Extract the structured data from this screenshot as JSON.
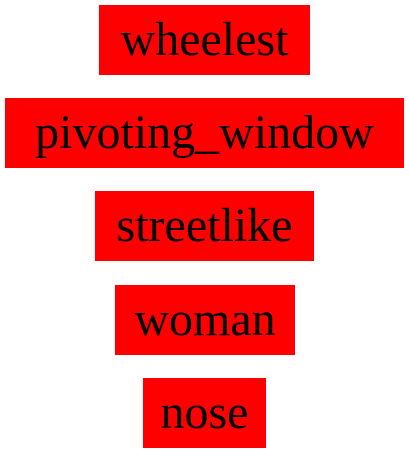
{
  "words": [
    {
      "text": "wheelest"
    },
    {
      "text": "pivoting_window"
    },
    {
      "text": "streetlike"
    },
    {
      "text": "woman"
    },
    {
      "text": "nose"
    }
  ],
  "colors": {
    "box_background": "#ff0000",
    "text": "#000000",
    "page_background": "#ffffff"
  }
}
